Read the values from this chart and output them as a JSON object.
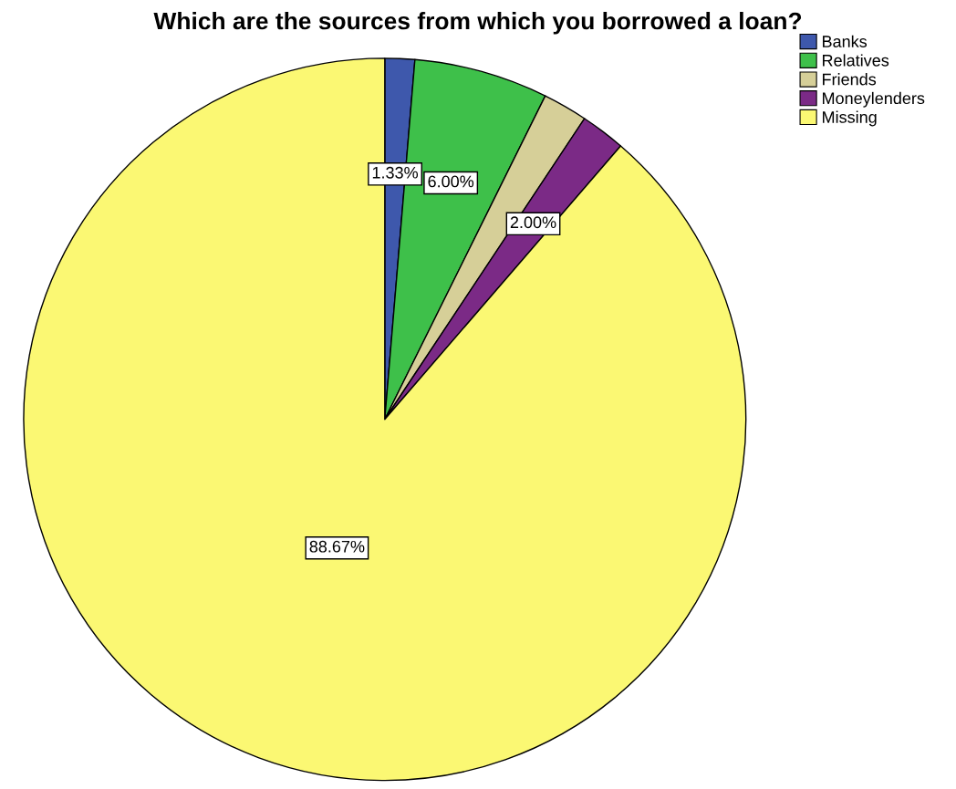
{
  "chart_data": {
    "type": "pie",
    "title": "Which are the sources from which you borrowed a loan?",
    "categories": [
      "Banks",
      "Relatives",
      "Friends",
      "Moneylenders",
      "Missing"
    ],
    "values": [
      1.33,
      6.0,
      2.0,
      2.0,
      88.67
    ],
    "colors": [
      "#3e58ac",
      "#3ec04a",
      "#d6cf98",
      "#7b2a86",
      "#fbf873"
    ],
    "value_labels": [
      "1.33%",
      "6.00%",
      null,
      "2.00%",
      "88.67%"
    ],
    "legend": "top right"
  }
}
